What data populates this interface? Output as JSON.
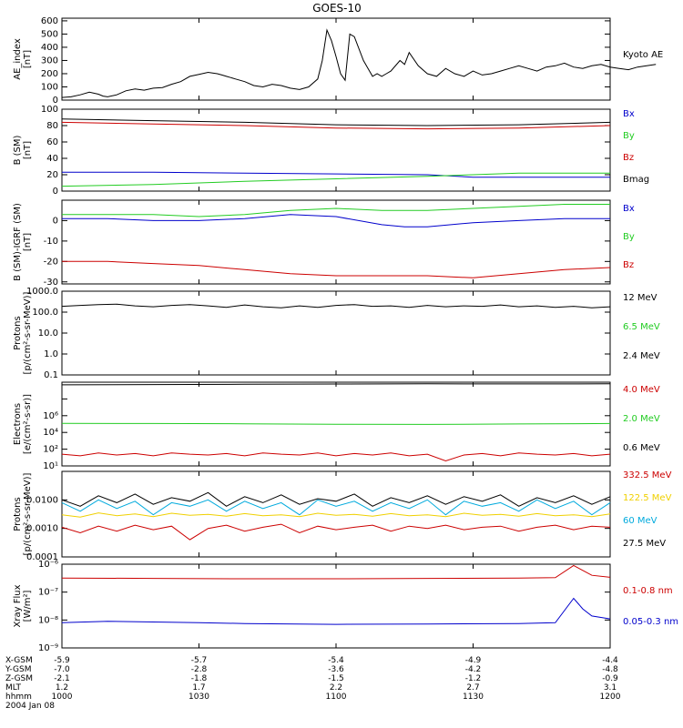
{
  "title": "GOES-10",
  "colors": {
    "black": "#000000",
    "red": "#cc0000",
    "green": "#22cc22",
    "blue": "#0000cc",
    "cyan": "#00aadd",
    "yellow": "#f0d000"
  },
  "time_axis": {
    "ticks": [
      "1000",
      "1030",
      "1100",
      "1130",
      "1200"
    ],
    "date": "2004 Jan 08",
    "rows": [
      {
        "label": "X-GSM",
        "values": [
          "-5.9",
          "-5.7",
          "-5.4",
          "-4.9",
          "-4.4"
        ]
      },
      {
        "label": "Y-GSM",
        "values": [
          "-7.0",
          "-2.8",
          "-3.6",
          "-4.2",
          "-4.8"
        ]
      },
      {
        "label": "Z-GSM",
        "values": [
          "-2.1",
          "-1.8",
          "-1.5",
          "-1.2",
          "-0.9"
        ]
      },
      {
        "label": "MLT",
        "values": [
          "1.2",
          "1.7",
          "2.2",
          "2.7",
          "3.1"
        ]
      },
      {
        "label": "hhmm",
        "values": [
          "1000",
          "1030",
          "1100",
          "1130",
          "1200"
        ]
      }
    ]
  },
  "chart_data": [
    {
      "type": "line",
      "ylabel": "AE_index\n[nT]",
      "ylim": [
        0,
        620
      ],
      "yticks": [
        "0",
        "100",
        "200",
        "300",
        "400",
        "500",
        "600"
      ],
      "series": [
        {
          "name": "Kyoto AE",
          "color": "#000000",
          "x": [
            0,
            2,
            4,
            6,
            8,
            9,
            10,
            12,
            14,
            16,
            18,
            20,
            22,
            24,
            26,
            28,
            30,
            32,
            34,
            35,
            36,
            37,
            38,
            40,
            42,
            44,
            46,
            48,
            50,
            52,
            54,
            56,
            57,
            58,
            59,
            60,
            61,
            62,
            63,
            64,
            66,
            67,
            68,
            69,
            70,
            71,
            72,
            74,
            75,
            76,
            78,
            80,
            82,
            84,
            86,
            88,
            90,
            92,
            94,
            96,
            98,
            100,
            102,
            104,
            106,
            108,
            110,
            112,
            114,
            116,
            118,
            120,
            122,
            124,
            126,
            128,
            130
          ],
          "values": [
            20,
            25,
            40,
            60,
            45,
            30,
            25,
            40,
            70,
            85,
            75,
            90,
            95,
            120,
            140,
            180,
            195,
            210,
            200,
            190,
            180,
            170,
            160,
            140,
            110,
            100,
            120,
            110,
            90,
            80,
            100,
            160,
            300,
            530,
            450,
            330,
            200,
            150,
            500,
            480,
            300,
            240,
            180,
            200,
            180,
            200,
            220,
            300,
            270,
            360,
            260,
            200,
            180,
            240,
            200,
            180,
            220,
            190,
            200,
            220,
            240,
            260,
            240,
            220,
            250,
            260,
            280,
            250,
            240,
            260,
            270,
            250,
            240,
            230,
            250,
            260,
            270
          ]
        }
      ]
    },
    {
      "type": "line",
      "ylabel": "B (SM)\n[nT]",
      "ylim": [
        0,
        100
      ],
      "yticks": [
        "0",
        "20",
        "40",
        "60",
        "80",
        "100"
      ],
      "series": [
        {
          "name": "Bx",
          "color": "#0000cc",
          "x": [
            0,
            20,
            40,
            60,
            80,
            90,
            100,
            120
          ],
          "values": [
            23,
            23,
            22,
            21,
            20,
            17,
            17,
            17
          ]
        },
        {
          "name": "By",
          "color": "#22cc22",
          "x": [
            0,
            20,
            40,
            60,
            80,
            90,
            100,
            120
          ],
          "values": [
            6,
            8,
            12,
            15,
            18,
            20,
            22,
            22
          ]
        },
        {
          "name": "Bz",
          "color": "#cc0000",
          "x": [
            0,
            20,
            40,
            60,
            80,
            100,
            120
          ],
          "values": [
            84,
            82,
            80,
            77,
            76,
            77,
            80
          ]
        },
        {
          "name": "Bmag",
          "color": "#000000",
          "x": [
            0,
            20,
            40,
            60,
            80,
            100,
            120
          ],
          "values": [
            88,
            86,
            84,
            81,
            80,
            81,
            84
          ]
        }
      ]
    },
    {
      "type": "line",
      "ylabel": "B (SM)-IGRF (SM)\n[nT]",
      "ylim": [
        -31,
        10
      ],
      "yticks": [
        "-30",
        "-20",
        "-10",
        "0"
      ],
      "series": [
        {
          "name": "Bx",
          "color": "#0000cc",
          "x": [
            0,
            10,
            20,
            30,
            40,
            50,
            60,
            70,
            75,
            80,
            90,
            100,
            110,
            120
          ],
          "values": [
            1,
            1,
            0,
            0,
            1,
            3,
            2,
            -2,
            -3,
            -3,
            -1,
            0,
            1,
            1
          ]
        },
        {
          "name": "By",
          "color": "#22cc22",
          "x": [
            0,
            10,
            20,
            30,
            40,
            50,
            60,
            70,
            80,
            90,
            100,
            110,
            120
          ],
          "values": [
            3,
            3,
            3,
            2,
            3,
            5,
            6,
            5,
            5,
            6,
            7,
            8,
            8
          ]
        },
        {
          "name": "Bz",
          "color": "#cc0000",
          "x": [
            0,
            10,
            20,
            30,
            40,
            50,
            60,
            70,
            80,
            90,
            100,
            110,
            120
          ],
          "values": [
            -20,
            -20,
            -21,
            -22,
            -24,
            -26,
            -27,
            -27,
            -27,
            -28,
            -26,
            -24,
            -23
          ]
        }
      ]
    },
    {
      "type": "line",
      "yscale": "log",
      "ylabel": "Protons\n[p/(cm²-s-sr-MeV)]",
      "ylim": [
        0.1,
        1000
      ],
      "yticks": [
        "0.1",
        "1.0",
        "10.0",
        "100.0",
        "1000.0"
      ],
      "series": [
        {
          "name": "12 MeV",
          "color": "#000000",
          "x": [
            0,
            4,
            8,
            12,
            16,
            20,
            24,
            28,
            32,
            36,
            40,
            44,
            48,
            52,
            56,
            60,
            64,
            68,
            72,
            76,
            80,
            84,
            88,
            92,
            96,
            100,
            104,
            108,
            112,
            116,
            120
          ],
          "values": [
            190,
            210,
            230,
            240,
            200,
            180,
            210,
            230,
            200,
            170,
            220,
            180,
            160,
            200,
            170,
            210,
            230,
            190,
            200,
            170,
            210,
            180,
            200,
            190,
            220,
            180,
            200,
            170,
            190,
            160,
            180
          ]
        },
        {
          "name": "6.5 MeV",
          "color": "#22cc22",
          "x": [],
          "values": []
        },
        {
          "name": "2.4 MeV",
          "color": "#000000",
          "x": [],
          "values": []
        }
      ]
    },
    {
      "type": "line",
      "yscale": "log",
      "ylabel": "Electrons\n[e/(cm²-s-sr)]",
      "ylim": [
        10,
        1000000
      ],
      "yticks": [
        "10¹",
        "10²",
        "10⁴",
        "10⁶"
      ],
      "series": [
        {
          "name": "4.0 MeV",
          "color": "#cc0000",
          "x": [
            0,
            4,
            8,
            12,
            16,
            20,
            24,
            28,
            32,
            36,
            40,
            44,
            48,
            52,
            56,
            60,
            64,
            68,
            72,
            76,
            80,
            84,
            88,
            92,
            96,
            100,
            104,
            108,
            112,
            116,
            120
          ],
          "values": [
            50,
            40,
            60,
            45,
            55,
            40,
            60,
            50,
            45,
            55,
            40,
            60,
            50,
            45,
            60,
            40,
            55,
            45,
            60,
            40,
            50,
            20,
            45,
            55,
            40,
            60,
            50,
            45,
            55,
            40,
            50
          ]
        },
        {
          "name": "2.0 MeV",
          "color": "#22cc22",
          "x": [
            0,
            20,
            40,
            60,
            80,
            100,
            120
          ],
          "values": [
            3500,
            3400,
            3300,
            3100,
            3000,
            3200,
            3400
          ]
        },
        {
          "name": "0.6 MeV",
          "color": "#000000",
          "x": [
            0,
            20,
            40,
            60,
            80,
            100,
            120
          ],
          "values": [
            700000,
            720000,
            750000,
            780000,
            800000,
            790000,
            800000
          ]
        }
      ]
    },
    {
      "type": "line",
      "yscale": "log",
      "ylabel": "Protons\n[p/(cm²-s-sr-MeV)]",
      "ylim": [
        0.0001,
        0.1
      ],
      "yticks": [
        "0.0001",
        "0.0010",
        "0.0100"
      ],
      "series": [
        {
          "name": "332.5 MeV",
          "color": "#cc0000",
          "x": [
            0,
            4,
            8,
            12,
            16,
            20,
            24,
            28,
            32,
            36,
            40,
            44,
            48,
            52,
            56,
            60,
            64,
            68,
            72,
            76,
            80,
            84,
            88,
            92,
            96,
            100,
            104,
            108,
            112,
            116,
            120
          ],
          "values": [
            0.0011,
            0.0007,
            0.0012,
            0.0008,
            0.0013,
            0.0009,
            0.0012,
            0.0004,
            0.001,
            0.0013,
            0.0008,
            0.0011,
            0.0014,
            0.0007,
            0.0012,
            0.0009,
            0.0011,
            0.0013,
            0.0008,
            0.0012,
            0.001,
            0.0013,
            0.0009,
            0.0011,
            0.0012,
            0.0008,
            0.0011,
            0.0013,
            0.0009,
            0.0012,
            0.0011
          ]
        },
        {
          "name": "122.5 MeV",
          "color": "#f0d000",
          "x": [
            0,
            4,
            8,
            12,
            16,
            20,
            24,
            28,
            32,
            36,
            40,
            44,
            48,
            52,
            56,
            60,
            64,
            68,
            72,
            76,
            80,
            84,
            88,
            92,
            96,
            100,
            104,
            108,
            112,
            116,
            120
          ],
          "values": [
            0.003,
            0.0025,
            0.0035,
            0.0028,
            0.0032,
            0.0026,
            0.0034,
            0.0029,
            0.0031,
            0.0027,
            0.0033,
            0.0028,
            0.003,
            0.0026,
            0.0034,
            0.0029,
            0.0031,
            0.0027,
            0.0033,
            0.0028,
            0.003,
            0.0026,
            0.0034,
            0.0029,
            0.0031,
            0.0027,
            0.0033,
            0.0028,
            0.003,
            0.0026,
            0.0032
          ]
        },
        {
          "name": "60 MeV",
          "color": "#00aadd",
          "x": [
            0,
            4,
            8,
            12,
            16,
            20,
            24,
            28,
            32,
            36,
            40,
            44,
            48,
            52,
            56,
            60,
            64,
            68,
            72,
            76,
            80,
            84,
            88,
            92,
            96,
            100,
            104,
            108,
            112,
            116,
            120
          ],
          "values": [
            0.008,
            0.004,
            0.01,
            0.005,
            0.009,
            0.003,
            0.008,
            0.006,
            0.01,
            0.004,
            0.009,
            0.005,
            0.008,
            0.003,
            0.01,
            0.006,
            0.009,
            0.004,
            0.008,
            0.005,
            0.01,
            0.003,
            0.009,
            0.006,
            0.008,
            0.004,
            0.01,
            0.005,
            0.009,
            0.003,
            0.008
          ]
        },
        {
          "name": "27.5 MeV",
          "color": "#000000",
          "x": [
            0,
            4,
            8,
            12,
            16,
            20,
            24,
            28,
            32,
            36,
            40,
            44,
            48,
            52,
            56,
            60,
            64,
            68,
            72,
            76,
            80,
            84,
            88,
            92,
            96,
            100,
            104,
            108,
            112,
            116,
            120
          ],
          "values": [
            0.01,
            0.006,
            0.014,
            0.008,
            0.016,
            0.007,
            0.012,
            0.009,
            0.018,
            0.006,
            0.013,
            0.008,
            0.015,
            0.007,
            0.011,
            0.009,
            0.016,
            0.006,
            0.012,
            0.008,
            0.014,
            0.007,
            0.013,
            0.009,
            0.015,
            0.006,
            0.012,
            0.008,
            0.014,
            0.007,
            0.013
          ]
        }
      ]
    },
    {
      "type": "line",
      "yscale": "log",
      "ylabel": "Xray Flux\n[W/m²]",
      "ylim": [
        1e-09,
        1e-06
      ],
      "yticks": [
        "10⁻⁹",
        "10⁻⁸",
        "10⁻⁷",
        "10⁻⁶"
      ],
      "series": [
        {
          "name": "0.1-0.8 nm",
          "color": "#cc0000",
          "x": [
            0,
            20,
            40,
            60,
            80,
            100,
            108,
            112,
            114,
            116,
            120
          ],
          "values": [
            3.2e-07,
            3.1e-07,
            3e-07,
            3e-07,
            3.1e-07,
            3.2e-07,
            3.3e-07,
            9e-07,
            6e-07,
            4e-07,
            3.4e-07
          ]
        },
        {
          "name": "0.05-0.3 nm",
          "color": "#0000cc",
          "x": [
            0,
            10,
            20,
            30,
            40,
            60,
            80,
            100,
            108,
            112,
            114,
            116,
            120
          ],
          "values": [
            8e-09,
            9e-09,
            8.5e-09,
            8e-09,
            7.5e-09,
            7e-09,
            7.2e-09,
            7.5e-09,
            8e-09,
            6e-08,
            2.5e-08,
            1.4e-08,
            1.1e-08
          ]
        }
      ]
    }
  ]
}
